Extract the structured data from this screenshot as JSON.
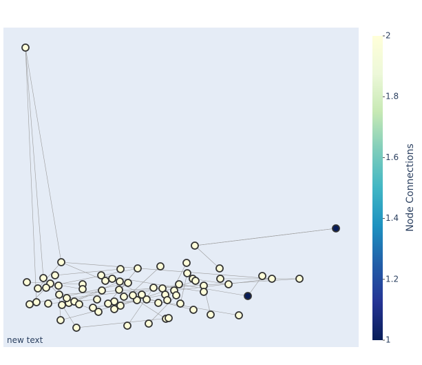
{
  "chart_data": {
    "type": "network",
    "x": [
      32,
      84,
      278,
      483,
      355,
      34,
      58,
      75,
      68,
      50,
      62,
      80,
      38,
      48,
      65,
      81,
      85,
      95,
      103,
      110,
      92,
      83,
      106,
      115,
      115,
      142,
      148,
      158,
      170,
      195,
      228,
      266,
      267,
      314,
      315,
      327,
      376,
      390,
      430,
      275,
      279,
      291,
      291,
      255,
      248,
      231,
      218,
      235,
      251,
      238,
      257,
      225,
      208,
      201,
      194,
      188,
      181,
      169,
      168,
      175,
      161,
      152,
      143,
      136,
      130,
      138,
      161,
      170,
      180,
      211,
      236,
      240,
      276,
      301,
      342
    ],
    "y": [
      434,
      123,
      147,
      172,
      74,
      94,
      100,
      104,
      92,
      85,
      86,
      89,
      62,
      65,
      63,
      76,
      61,
      64,
      66,
      62,
      71,
      39,
      28,
      91,
      84,
      104,
      96,
      99,
      113,
      114,
      117,
      122,
      107,
      114,
      99,
      91,
      103,
      99,
      99,
      99,
      96,
      89,
      80,
      91,
      82,
      85,
      86,
      76,
      75,
      68,
      63,
      64,
      69,
      76,
      68,
      75,
      93,
      95,
      83,
      73,
      66,
      63,
      82,
      69,
      57,
      51,
      55,
      60,
      31,
      34,
      41,
      42,
      54,
      47,
      46
    ],
    "values": [
      2,
      2,
      2,
      1,
      1,
      2,
      2,
      2,
      2,
      2,
      2,
      2,
      2,
      2,
      2,
      2,
      2,
      2,
      2,
      2,
      2,
      2,
      2,
      2,
      2,
      2,
      2,
      2,
      2,
      2,
      2,
      2,
      2,
      2,
      2,
      2,
      2,
      2,
      2,
      2,
      2,
      2,
      2,
      2,
      2,
      2,
      2,
      2,
      2,
      2,
      2,
      2,
      2,
      2,
      2,
      2,
      2,
      2,
      2,
      2,
      2,
      2,
      2,
      2,
      2,
      2,
      2,
      2,
      2,
      2,
      2,
      2,
      2,
      2,
      2
    ],
    "edges": [
      [
        0,
        1
      ],
      [
        0,
        6
      ],
      [
        0,
        13
      ],
      [
        1,
        26
      ],
      [
        1,
        37
      ],
      [
        1,
        9
      ],
      [
        2,
        3
      ],
      [
        2,
        33
      ],
      [
        4,
        36
      ],
      [
        5,
        23
      ],
      [
        6,
        15
      ],
      [
        7,
        28
      ],
      [
        8,
        24
      ],
      [
        10,
        12
      ],
      [
        11,
        21
      ],
      [
        14,
        63
      ],
      [
        16,
        22
      ],
      [
        17,
        57
      ],
      [
        18,
        62
      ],
      [
        19,
        65
      ],
      [
        20,
        45
      ],
      [
        22,
        71
      ],
      [
        25,
        42
      ],
      [
        27,
        53
      ],
      [
        29,
        61
      ],
      [
        30,
        66
      ],
      [
        31,
        49
      ],
      [
        32,
        50
      ],
      [
        34,
        38
      ],
      [
        35,
        39
      ],
      [
        37,
        44
      ],
      [
        40,
        67
      ],
      [
        41,
        73
      ],
      [
        43,
        59
      ],
      [
        46,
        68
      ],
      [
        47,
        64
      ],
      [
        48,
        69
      ],
      [
        51,
        60
      ],
      [
        52,
        74
      ],
      [
        54,
        70
      ],
      [
        55,
        72
      ],
      [
        56,
        58
      ],
      [
        9,
        29
      ],
      [
        12,
        56
      ],
      [
        15,
        38
      ],
      [
        21,
        54
      ],
      [
        3,
        2
      ],
      [
        43,
        4
      ]
    ],
    "colorscale": [
      "rgb(8,29,88)",
      "rgb(37,52,148)",
      "rgb(34,94,168)",
      "rgb(29,145,192)",
      "rgb(65,182,196)",
      "rgb(127,205,187)",
      "rgb(199,233,180)",
      "rgb(237,248,217)",
      "rgb(255,255,217)"
    ],
    "xlim": [
      0,
      516
    ],
    "ylim": [
      0,
      463
    ],
    "colorbar_title": "Node Connections",
    "colorbar_lim": [
      1,
      2
    ],
    "colorbar_ticks": [
      1,
      1.2,
      1.4,
      1.6,
      1.8,
      2
    ],
    "annotation": "new text"
  }
}
